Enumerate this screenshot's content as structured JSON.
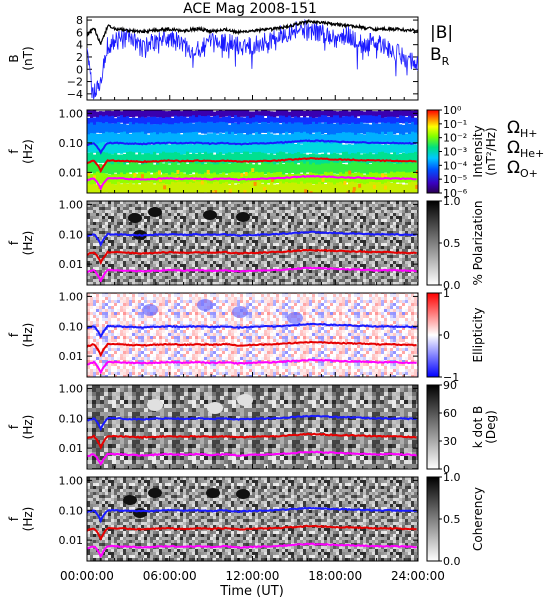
{
  "title": "ACE Mag 2008-151",
  "x_axis": {
    "label": "Time (UT)",
    "ticks": [
      "00:00:00",
      "06:00:00",
      "12:00:00",
      "18:00:00",
      "24:00:00"
    ],
    "tick_hours": [
      0,
      6,
      12,
      18,
      24
    ]
  },
  "colors": {
    "B_total": "#000000",
    "B_R": "#1a1aff",
    "H": "#1a1aff",
    "He": "#e60000",
    "O": "#ff00ff"
  },
  "legend_B": {
    "total": "|B|",
    "radial_main": "B",
    "radial_sub": "R"
  },
  "legend_gyro": [
    {
      "main": "Ω",
      "sub": "H+",
      "color": "#1a1aff"
    },
    {
      "main": "Ω",
      "sub": "He+",
      "color": "#e60000"
    },
    {
      "main": "Ω",
      "sub": "O+",
      "color": "#ff00ff"
    }
  ],
  "chart_data": [
    {
      "type": "line",
      "panel": "B",
      "ylabel": "B",
      "yunit": "(nT)",
      "ylim": [
        -5,
        8.5
      ],
      "yticks": [
        8,
        6,
        4,
        2,
        0,
        -2,
        -4
      ],
      "series": [
        {
          "name": "|B|",
          "x": [
            0,
            0.5,
            1,
            1.5,
            2,
            3,
            4,
            5,
            6,
            7,
            8,
            9,
            10,
            11,
            12,
            13,
            14,
            15,
            16,
            17,
            18,
            19,
            20,
            21,
            22,
            23,
            24
          ],
          "values": [
            5.5,
            6.8,
            4.0,
            7.0,
            6.6,
            6.3,
            6.1,
            6.4,
            6.5,
            6.3,
            6.6,
            6.2,
            6.5,
            6.0,
            6.3,
            6.4,
            6.7,
            7.2,
            7.8,
            7.6,
            7.3,
            7.1,
            6.8,
            6.5,
            6.6,
            6.4,
            6.2
          ]
        },
        {
          "name": "B_R",
          "x": [
            0,
            0.5,
            1,
            1.5,
            2,
            3,
            4,
            5,
            6,
            7,
            8,
            9,
            10,
            11,
            12,
            13,
            14,
            15,
            16,
            17,
            18,
            19,
            20,
            21,
            22,
            23,
            24
          ],
          "values": [
            2.0,
            -3.5,
            -1.5,
            4.0,
            4.5,
            5.0,
            3.5,
            4.5,
            5.0,
            4.0,
            3.0,
            4.2,
            4.5,
            3.8,
            4.0,
            4.5,
            5.5,
            6.5,
            6.5,
            6.0,
            5.0,
            5.5,
            4.0,
            4.5,
            3.0,
            2.0,
            1.0
          ]
        }
      ]
    },
    {
      "type": "heatmap",
      "panel": "Intensity",
      "ylabel": "f",
      "yunit": "(Hz)",
      "yscale": "log",
      "ylim": [
        0.002,
        1.3
      ],
      "yticks": [
        "1.00",
        "0.10",
        "0.01"
      ],
      "colorbar": {
        "label": "Intensity",
        "unit": "(nT²/Hz)",
        "ticks": [
          "10⁰",
          "10⁻¹",
          "10⁻²",
          "10⁻³",
          "10⁻⁴",
          "10⁻⁵",
          "10⁻⁶"
        ],
        "scale": "rainbow"
      }
    },
    {
      "type": "heatmap",
      "panel": "Polarization",
      "ylabel": "f",
      "yunit": "(Hz)",
      "yscale": "log",
      "ylim": [
        0.002,
        1.3
      ],
      "yticks": [
        "1.00",
        "0.10",
        "0.01"
      ],
      "colorbar": {
        "label": "% Polarization",
        "ticks": [
          "1.0",
          "0.5",
          "0.0"
        ],
        "scale": "gray"
      }
    },
    {
      "type": "heatmap",
      "panel": "Ellipticity",
      "ylabel": "f",
      "yunit": "(Hz)",
      "yscale": "log",
      "ylim": [
        0.002,
        1.3
      ],
      "yticks": [
        "1.00",
        "0.10",
        "0.01"
      ],
      "colorbar": {
        "label": "Ellipticity",
        "ticks": [
          "1",
          "0",
          "−1"
        ],
        "scale": "redblue"
      }
    },
    {
      "type": "heatmap",
      "panel": "kdotB",
      "ylabel": "f",
      "yunit": "(Hz)",
      "yscale": "log",
      "ylim": [
        0.002,
        1.3
      ],
      "yticks": [
        "1.00",
        "0.10",
        "0.01"
      ],
      "colorbar": {
        "label": "k dot B",
        "unit": "(Deg)",
        "ticks": [
          "90",
          "60",
          "30",
          "0"
        ],
        "scale": "gray"
      }
    },
    {
      "type": "heatmap",
      "panel": "Coherency",
      "ylabel": "f",
      "yunit": "(Hz)",
      "yscale": "log",
      "ylim": [
        0.002,
        1.3
      ],
      "yticks": [
        "1.00",
        "0.10",
        "0.01"
      ],
      "colorbar": {
        "label": "Coherency",
        "ticks": [
          "1.0",
          "0.5",
          "0.0"
        ],
        "scale": "gray"
      }
    }
  ],
  "gyrofrequencies": {
    "x": [
      0,
      0.5,
      1,
      1.5,
      2,
      3,
      4,
      5,
      6,
      7,
      8,
      9,
      10,
      11,
      12,
      13,
      14,
      15,
      16,
      17,
      18,
      19,
      20,
      21,
      22,
      23,
      24
    ],
    "H+": [
      0.085,
      0.1,
      0.045,
      0.1,
      0.1,
      0.095,
      0.092,
      0.097,
      0.1,
      0.096,
      0.1,
      0.094,
      0.099,
      0.091,
      0.096,
      0.098,
      0.102,
      0.11,
      0.118,
      0.116,
      0.11,
      0.107,
      0.103,
      0.099,
      0.1,
      0.097,
      0.094
    ],
    "He+": [
      0.021,
      0.025,
      0.011,
      0.025,
      0.025,
      0.024,
      0.023,
      0.024,
      0.025,
      0.024,
      0.025,
      0.024,
      0.025,
      0.023,
      0.024,
      0.0245,
      0.0255,
      0.0275,
      0.0295,
      0.029,
      0.0275,
      0.027,
      0.026,
      0.025,
      0.025,
      0.024,
      0.0235
    ],
    "O+": [
      0.0053,
      0.0063,
      0.0028,
      0.0063,
      0.0063,
      0.006,
      0.0058,
      0.006,
      0.0063,
      0.006,
      0.0063,
      0.0059,
      0.0062,
      0.0057,
      0.006,
      0.0061,
      0.0064,
      0.0069,
      0.0074,
      0.0073,
      0.0069,
      0.0067,
      0.0065,
      0.0062,
      0.0063,
      0.0061,
      0.0059
    ]
  }
}
